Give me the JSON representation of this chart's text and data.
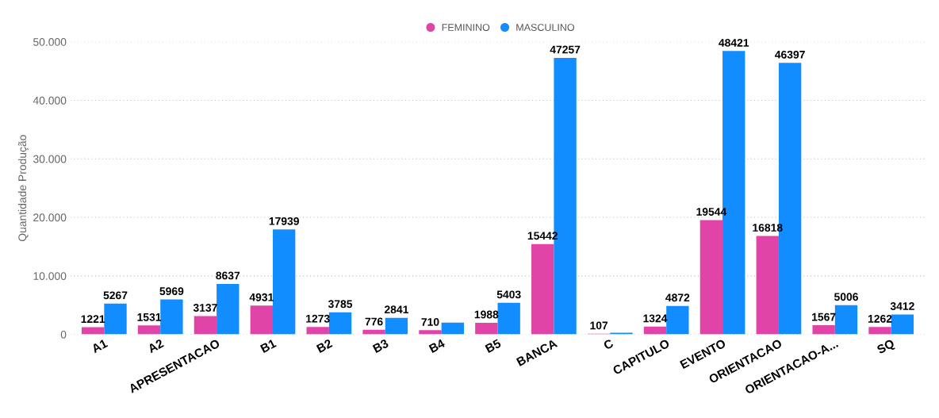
{
  "chart_data": {
    "type": "bar",
    "ylabel": "Quantidade Produção",
    "categories": [
      "A1",
      "A2",
      "APRESENTACAO",
      "B1",
      "B2",
      "B3",
      "B4",
      "B5",
      "BANCA",
      "C",
      "CAPITULO",
      "EVENTO",
      "ORIENTACAO",
      "ORIENTACAO-A...",
      "SQ"
    ],
    "series": [
      {
        "name": "FEMININO",
        "color": "#e044a7",
        "values": [
          1221,
          1531,
          3137,
          4931,
          1273,
          776,
          710,
          1988,
          15442,
          107,
          1324,
          19544,
          16818,
          1567,
          1262
        ],
        "value_labels": [
          "1221",
          "1531",
          "3137",
          "4931",
          "1273",
          "776",
          "710",
          "1988",
          "15442",
          "107",
          "1324",
          "19544",
          "16818",
          "1567",
          "1262"
        ]
      },
      {
        "name": "MASCULINO",
        "color": "#118dff",
        "values": [
          5267,
          5969,
          8637,
          17939,
          3785,
          2841,
          2000,
          5403,
          47257,
          300,
          4872,
          48421,
          46397,
          5006,
          3412
        ],
        "value_labels": [
          "5267",
          "5969",
          "8637",
          "17939",
          "3785",
          "2841",
          null,
          "5403",
          "47257",
          null,
          "4872",
          "48421",
          "46397",
          "5006",
          "3412"
        ]
      }
    ],
    "ylim": [
      0,
      50000
    ],
    "yticks": [
      {
        "value": 0,
        "label": "0"
      },
      {
        "value": 10000,
        "label": "10.000"
      },
      {
        "value": 20000,
        "label": "20.000"
      },
      {
        "value": 30000,
        "label": "30.000"
      },
      {
        "value": 40000,
        "label": "40.000"
      },
      {
        "value": 50000,
        "label": "50.000"
      }
    ],
    "grid": "y",
    "legend": "top"
  }
}
